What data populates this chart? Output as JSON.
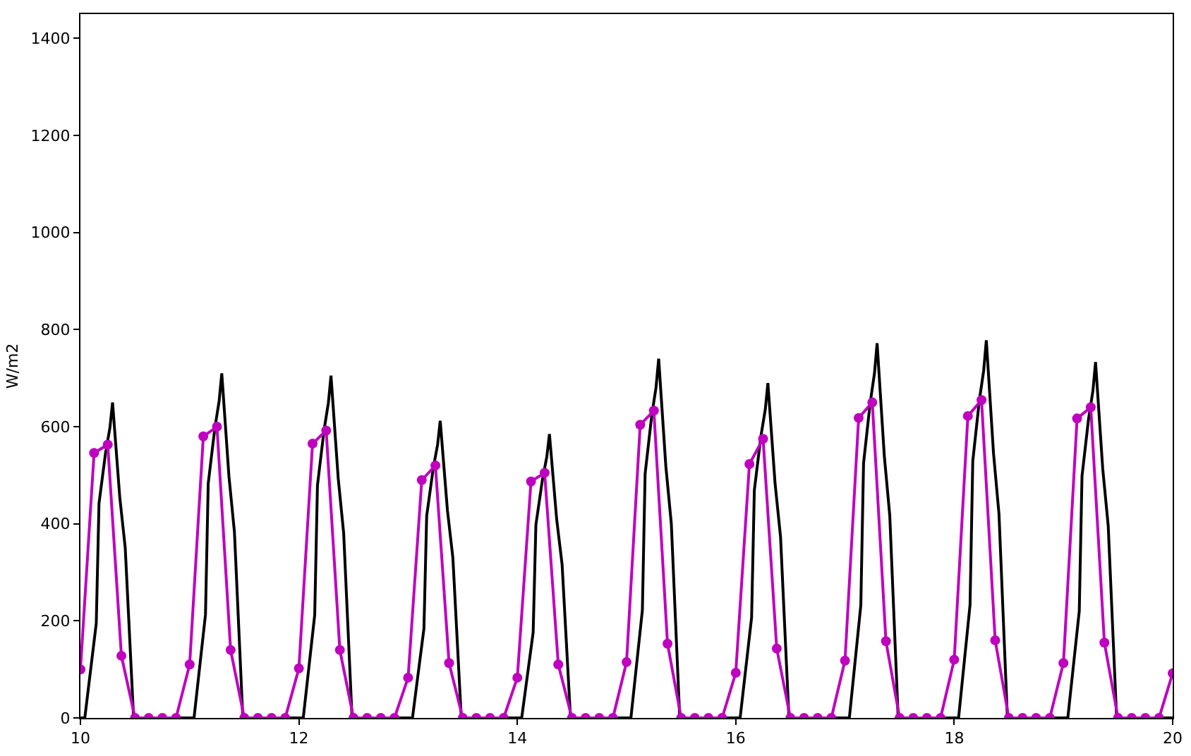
{
  "chart_data": {
    "type": "line",
    "ylabel": "W/m2",
    "xlim": [
      10,
      20
    ],
    "xticks": [
      10,
      12,
      14,
      16,
      18,
      20
    ],
    "ylim": [
      0,
      1450
    ],
    "yticks": [
      0,
      200,
      400,
      600,
      800,
      1000,
      1200,
      1400
    ],
    "series": [
      {
        "color": "#000000",
        "marker": "none",
        "x": [
          10,
          10.04,
          10.145,
          10.17,
          10.23,
          10.27,
          10.294,
          10.36,
          10.41,
          10.487,
          11.04,
          11.145,
          11.17,
          11.23,
          11.27,
          11.294,
          11.36,
          11.41,
          11.487,
          12.04,
          12.145,
          12.17,
          12.23,
          12.27,
          12.294,
          12.36,
          12.41,
          12.487,
          13.04,
          13.145,
          13.17,
          13.23,
          13.27,
          13.294,
          13.36,
          13.41,
          13.487,
          14.04,
          14.145,
          14.17,
          14.23,
          14.27,
          14.294,
          14.36,
          14.41,
          14.487,
          15.04,
          15.145,
          15.17,
          15.23,
          15.27,
          15.294,
          15.36,
          15.41,
          15.487,
          16.04,
          16.145,
          16.17,
          16.23,
          16.27,
          16.294,
          16.36,
          16.41,
          16.487,
          17.04,
          17.145,
          17.17,
          17.23,
          17.27,
          17.294,
          17.36,
          17.41,
          17.487,
          18.04,
          18.145,
          18.17,
          18.23,
          18.27,
          18.294,
          18.36,
          18.41,
          18.487,
          19.04,
          19.145,
          19.17,
          19.23,
          19.27,
          19.294,
          19.36,
          19.41,
          19.487,
          20
        ],
        "values": [
          0,
          0,
          195,
          442,
          546,
          598,
          650,
          455,
          351,
          0,
          0,
          213,
          483,
          596,
          653,
          710,
          497,
          383,
          0,
          0,
          212,
          479,
          592,
          649,
          705,
          494,
          381,
          0,
          0,
          184,
          416,
          514,
          563,
          612,
          428,
          330,
          0,
          0,
          176,
          398,
          491,
          538,
          585,
          410,
          316,
          0,
          0,
          222,
          503,
          622,
          681,
          740,
          518,
          400,
          0,
          0,
          207,
          469,
          580,
          635,
          690,
          483,
          373,
          0,
          0,
          232,
          525,
          648,
          710,
          772,
          540,
          417,
          0,
          0,
          233,
          529,
          654,
          716,
          778,
          545,
          420,
          0,
          0,
          220,
          498,
          616,
          674,
          733,
          513,
          396,
          0,
          0
        ]
      },
      {
        "color": "#bf00bf",
        "marker": "circle",
        "x": [
          10,
          10.125,
          10.25,
          10.375,
          10.5,
          10.625,
          10.75,
          10.875,
          11,
          11.125,
          11.25,
          11.375,
          11.5,
          11.625,
          11.75,
          11.875,
          12,
          12.125,
          12.25,
          12.375,
          12.5,
          12.625,
          12.75,
          12.875,
          13,
          13.125,
          13.25,
          13.375,
          13.5,
          13.625,
          13.75,
          13.875,
          14,
          14.125,
          14.25,
          14.375,
          14.5,
          14.625,
          14.75,
          14.875,
          15,
          15.125,
          15.25,
          15.375,
          15.5,
          15.625,
          15.75,
          15.875,
          16,
          16.125,
          16.25,
          16.375,
          16.5,
          16.625,
          16.75,
          16.875,
          17,
          17.125,
          17.25,
          17.375,
          17.5,
          17.625,
          17.75,
          17.875,
          18,
          18.125,
          18.25,
          18.375,
          18.5,
          18.625,
          18.75,
          18.875,
          19,
          19.125,
          19.25,
          19.375,
          19.5,
          19.625,
          19.75,
          19.875,
          20
        ],
        "values": [
          100,
          546,
          563,
          128,
          0,
          0,
          0,
          0,
          110,
          580,
          600,
          140,
          0,
          0,
          0,
          0,
          102,
          565,
          592,
          140,
          0,
          0,
          0,
          0,
          83,
          490,
          520,
          113,
          0,
          0,
          0,
          0,
          83,
          487,
          505,
          110,
          0,
          0,
          0,
          0,
          115,
          604,
          633,
          153,
          0,
          0,
          0,
          0,
          93,
          523,
          575,
          143,
          0,
          0,
          0,
          0,
          118,
          618,
          650,
          158,
          0,
          0,
          0,
          0,
          120,
          622,
          655,
          160,
          0,
          0,
          0,
          0,
          113,
          617,
          640,
          155,
          0,
          0,
          0,
          0,
          92
        ]
      }
    ]
  }
}
